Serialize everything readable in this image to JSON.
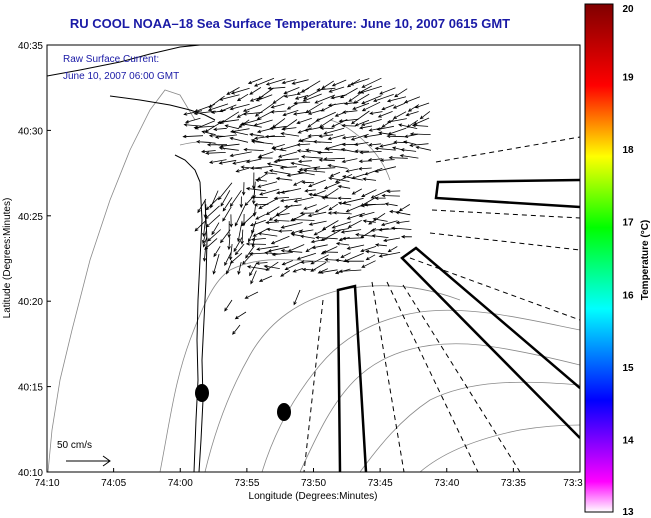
{
  "title": "RU COOL  NOAA–18  Sea Surface Temperature:  June 10, 2007 0615 GMT",
  "current_note": {
    "line1": "Raw Surface Current:",
    "line2": "June 10, 2007 06:00 GMT"
  },
  "scale_label": "50 cm/s",
  "axes": {
    "xlabel": "Longitude (Degrees:Minutes)",
    "ylabel": "Latitude (Degrees:Minutes)",
    "xticks": [
      "74:10",
      "74:05",
      "74:00",
      "73:55",
      "73:50",
      "73:45",
      "73:40",
      "73:35",
      "73:3"
    ],
    "yticks": [
      "40:35",
      "40:30",
      "40:25",
      "40:20",
      "40:15",
      "40:10"
    ]
  },
  "colorbar": {
    "label": "Temperature (°C)",
    "ticks": [
      "20",
      "19",
      "18",
      "17",
      "16",
      "15",
      "14",
      "13"
    ],
    "min": 13,
    "max": 20,
    "colors": [
      "#ff00ff",
      "#0000ff",
      "#00ffff",
      "#00ff00",
      "#ffff00",
      "#ff0000",
      "#800000"
    ]
  },
  "colors": {
    "title": "#1a1aa6",
    "coast": "#000000",
    "bathymetry": "#888888"
  }
}
